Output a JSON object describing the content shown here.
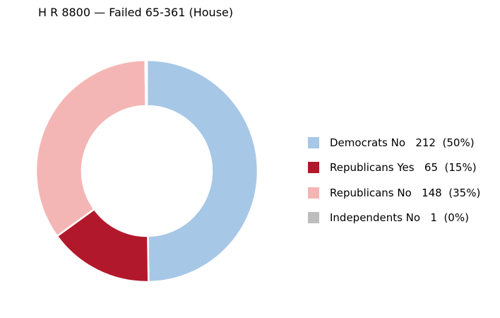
{
  "chart_data": {
    "type": "pie",
    "title": "H R 8800 — Failed 65-361 (House)",
    "donut": true,
    "slices": [
      {
        "label": "Democrats No",
        "value": 212,
        "percent_label": "(50%)",
        "color": "#a7c7e7"
      },
      {
        "label": "Republicans Yes",
        "value": 65,
        "percent_label": "(15%)",
        "color": "#b2182b"
      },
      {
        "label": "Republicans No",
        "value": 148,
        "percent_label": "(35%)",
        "color": "#f4b6b4"
      },
      {
        "label": "Independents No",
        "value": 1,
        "percent_label": "(0%)",
        "color": "#bdbdbd"
      }
    ],
    "legend_position": "right"
  }
}
